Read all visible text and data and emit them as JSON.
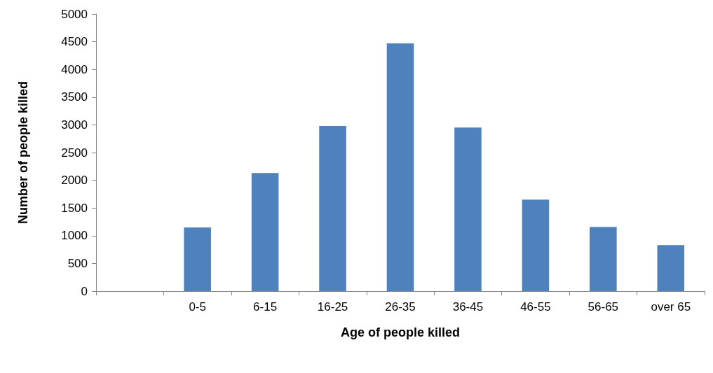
{
  "chart_data": {
    "type": "bar",
    "xlabel": "Age of people killed",
    "ylabel": "Number of people killed",
    "categories": [
      null,
      "0-5",
      "6-15",
      "16-25",
      "26-35",
      "36-45",
      "46-55",
      "56-65",
      "over 65"
    ],
    "values": [
      null,
      1150,
      2130,
      2980,
      4470,
      2950,
      1650,
      1160,
      830
    ],
    "color": "#4f81bd",
    "ylim": [
      0,
      5000
    ],
    "yticks": [
      0,
      500,
      1000,
      1500,
      2000,
      2500,
      3000,
      3500,
      4000,
      4500,
      5000
    ],
    "grid": false
  }
}
